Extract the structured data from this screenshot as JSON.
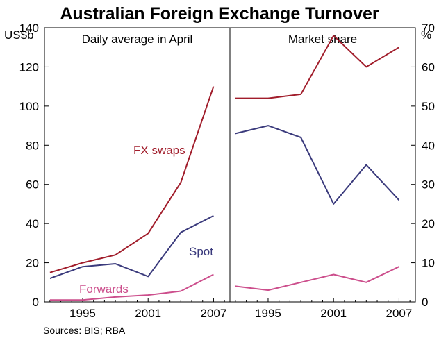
{
  "chart_data": {
    "type": "line",
    "title": "Australian Foreign Exchange Turnover",
    "source": "Sources: BIS; RBA",
    "colors": {
      "fx_swaps": "#a11d2b",
      "spot": "#3a3a7c",
      "forwards": "#cc4e8c"
    },
    "panels": [
      {
        "title": "Daily average in April",
        "unit": "US$b",
        "ylim": [
          0,
          140
        ],
        "yticks": [
          0,
          20,
          40,
          60,
          80,
          100,
          120,
          140
        ],
        "xlim": [
          1991.5,
          2008.5
        ],
        "xticks": [
          1995,
          2001,
          2007
        ],
        "series": [
          {
            "name": "FX swaps",
            "color_key": "fx_swaps",
            "x": [
              1992,
              1995,
              1998,
              2001,
              2004,
              2007
            ],
            "values": [
              15,
              20,
              24,
              35,
              61,
              110
            ]
          },
          {
            "name": "Spot",
            "color_key": "spot",
            "x": [
              1992,
              1995,
              1998,
              2001,
              2004,
              2007
            ],
            "values": [
              12,
              18,
              19.5,
              13,
              35.5,
              44
            ]
          },
          {
            "name": "Forwards",
            "color_key": "forwards",
            "x": [
              1992,
              1995,
              1998,
              2001,
              2004,
              2007
            ],
            "values": [
              1,
              1,
              2.5,
              3.5,
              5.5,
              14
            ]
          }
        ]
      },
      {
        "title": "Market share",
        "unit": "%",
        "ylim": [
          0,
          70
        ],
        "yticks": [
          0,
          10,
          20,
          30,
          40,
          50,
          60,
          70
        ],
        "xlim": [
          1991.5,
          2008.5
        ],
        "xticks": [
          1995,
          2001,
          2007
        ],
        "series": [
          {
            "name": "FX swaps",
            "color_key": "fx_swaps",
            "x": [
              1992,
              1995,
              1998,
              2001,
              2004,
              2007
            ],
            "values": [
              52,
              52,
              53,
              68,
              60,
              65
            ]
          },
          {
            "name": "Spot",
            "color_key": "spot",
            "x": [
              1992,
              1995,
              1998,
              2001,
              2004,
              2007
            ],
            "values": [
              43,
              45,
              42,
              25,
              35,
              26
            ]
          },
          {
            "name": "Forwards",
            "color_key": "forwards",
            "x": [
              1992,
              1995,
              1998,
              2001,
              2004,
              2007
            ],
            "values": [
              4,
              3,
              5,
              7,
              5,
              9
            ]
          }
        ]
      }
    ]
  }
}
